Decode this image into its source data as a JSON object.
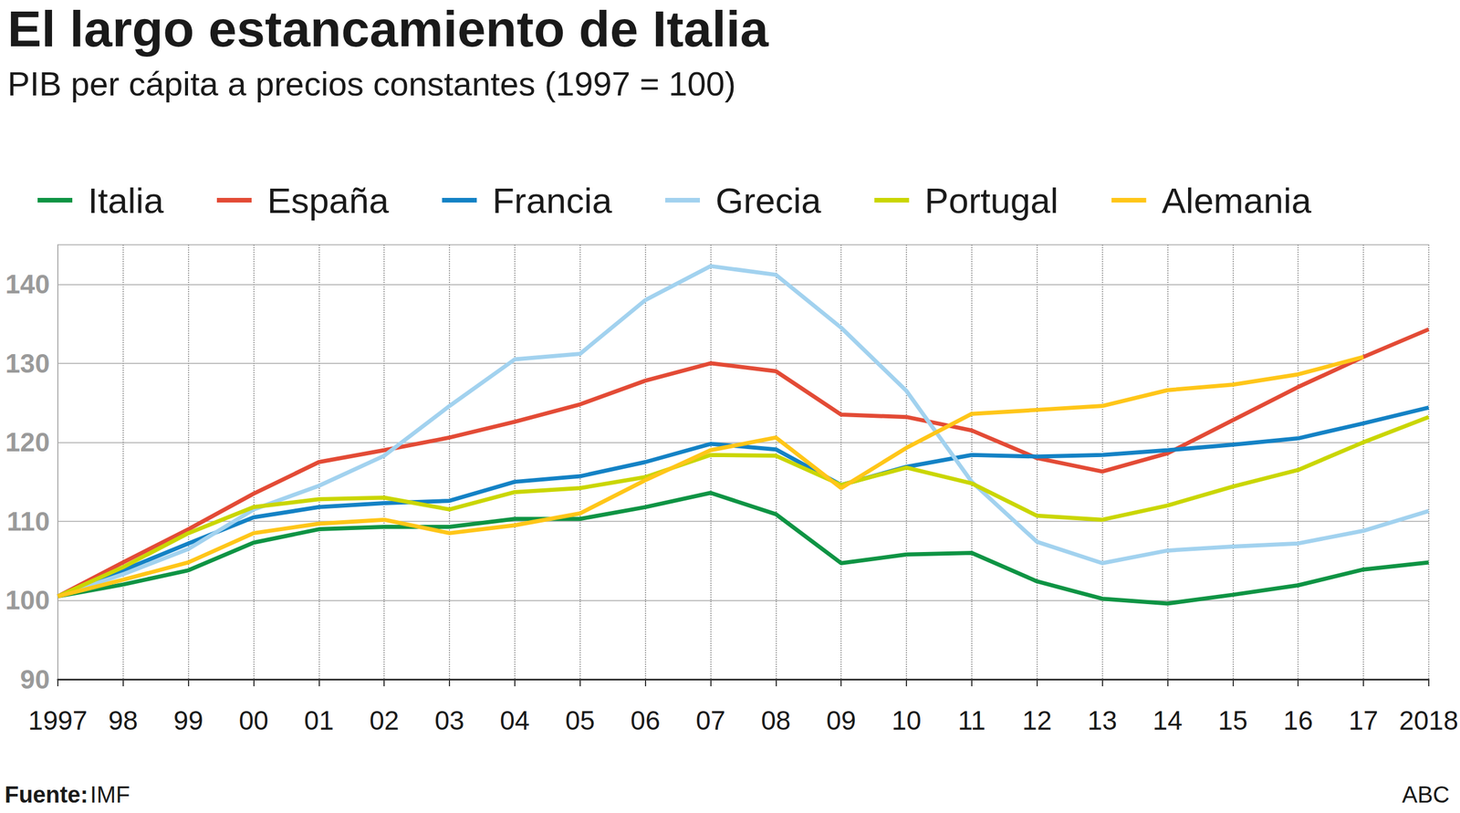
{
  "chart_data": {
    "type": "line",
    "title": "El largo estancamiento de Italia",
    "subtitle": "PIB per cápita a precios constantes (1997 = 100)",
    "source_label": "Fuente:",
    "source": "IMF",
    "credit": "ABC",
    "categories": [
      "1997",
      "98",
      "99",
      "00",
      "01",
      "02",
      "03",
      "04",
      "05",
      "06",
      "07",
      "08",
      "09",
      "10",
      "11",
      "12",
      "13",
      "14",
      "15",
      "16",
      "17",
      "2018"
    ],
    "series": [
      {
        "name": "Italia",
        "color": "#0f9444",
        "values": [
          100.5,
          102,
          103.8,
          107.3,
          109,
          109.3,
          109.3,
          110.3,
          110.3,
          111.8,
          113.6,
          110.9,
          104.7,
          105.8,
          106,
          102.4,
          100.2,
          99.6,
          100.7,
          101.9,
          103.9,
          104.8
        ]
      },
      {
        "name": "España",
        "color": "#e34b36",
        "values": [
          100.5,
          104.8,
          109,
          113.5,
          117.5,
          119,
          120.6,
          122.6,
          124.8,
          127.8,
          130,
          129,
          123.5,
          123.2,
          121.5,
          118,
          116.3,
          118.6,
          122.8,
          127,
          130.8,
          134.3
        ]
      },
      {
        "name": "Francia",
        "color": "#1482c5",
        "values": [
          100.5,
          103.8,
          107.2,
          110.5,
          111.8,
          112.3,
          112.6,
          115,
          115.7,
          117.5,
          119.8,
          119.1,
          114.6,
          116.9,
          118.4,
          118.2,
          118.4,
          119,
          119.7,
          120.5,
          122.4,
          124.4
        ]
      },
      {
        "name": "Grecia",
        "color": "#a2d2ef",
        "values": [
          100.5,
          103.3,
          106.5,
          111.5,
          114.5,
          118.3,
          124.6,
          130.5,
          131.2,
          138,
          142.3,
          141.2,
          134.5,
          126.5,
          115,
          107.4,
          104.7,
          106.3,
          106.8,
          107.2,
          108.8,
          111.3
        ]
      },
      {
        "name": "Portugal",
        "color": "#cad600",
        "values": [
          100.5,
          104.2,
          108.5,
          111.8,
          112.8,
          113,
          111.5,
          113.7,
          114.2,
          115.6,
          118.4,
          118.3,
          114.6,
          116.8,
          114.8,
          110.7,
          110.2,
          112,
          114.4,
          116.5,
          120,
          123.2
        ]
      },
      {
        "name": "Alemania",
        "color": "#ffc619",
        "values": [
          100.5,
          102.6,
          104.8,
          108.5,
          109.7,
          110.2,
          108.5,
          109.5,
          111,
          115.2,
          119,
          120.6,
          114.2,
          119.3,
          123.6,
          124.1,
          124.6,
          126.6,
          127.3,
          128.6,
          130.8,
          null
        ]
      }
    ],
    "ylim": [
      90,
      145
    ],
    "yticks": [
      90,
      100,
      110,
      120,
      130,
      140
    ],
    "grid": true,
    "legend": "top",
    "marker": "none"
  }
}
